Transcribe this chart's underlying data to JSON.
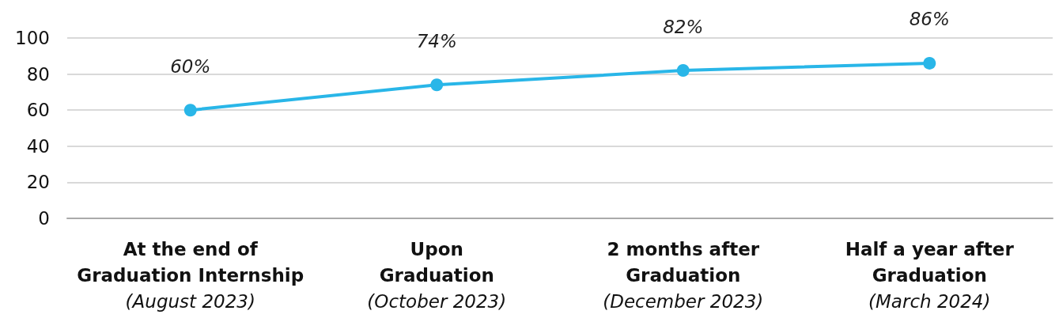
{
  "chart_data": {
    "type": "line",
    "categories": [
      "At the end of\nGraduation Internship\n(August 2023)",
      "Upon\nGraduation\n(October 2023)",
      "2 months after\nGraduation\n(December 2023)",
      "Half a year after\nGraduation\n(March 2024)"
    ],
    "series": [
      {
        "color": "#29b6e8",
        "values": [
          60,
          74,
          82,
          86
        ],
        "value_labels": [
          "60%",
          "74%",
          "82%",
          "86%"
        ]
      }
    ],
    "ylim": [
      0,
      100
    ],
    "yticks": [
      0,
      20,
      40,
      60,
      80,
      100
    ],
    "grid": "y",
    "marker": "circle",
    "line_style": "solid"
  }
}
